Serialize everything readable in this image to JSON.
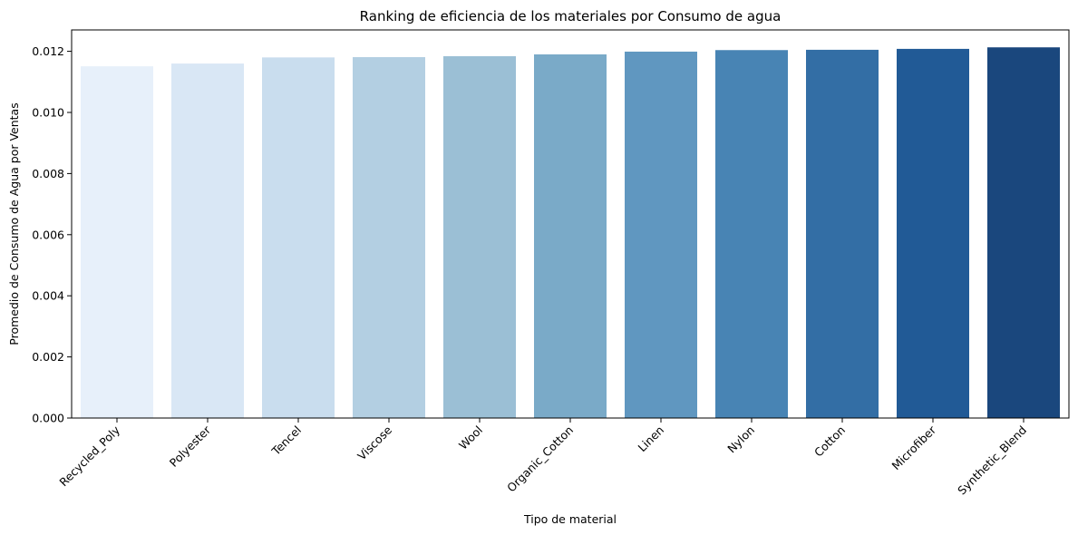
{
  "chart_data": {
    "type": "bar",
    "title": "Ranking de eficiencia de los materiales por Consumo de agua",
    "xlabel": "Tipo de material",
    "ylabel": "Promedio de Consumo de Agua por Ventas",
    "categories": [
      "Recycled_Poly",
      "Polyester",
      "Tencel",
      "Viscose",
      "Wool",
      "Organic_Cotton",
      "Linen",
      "Nylon",
      "Cotton",
      "Microfiber",
      "Synthetic_Blend"
    ],
    "values": [
      0.01151,
      0.0116,
      0.0118,
      0.01181,
      0.01184,
      0.0119,
      0.01199,
      0.01204,
      0.01205,
      0.01208,
      0.01213
    ],
    "colors": [
      "#e7f0fa",
      "#d9e7f5",
      "#c9ddee",
      "#b3cfe2",
      "#9bbfd5",
      "#7aaac8",
      "#6097c0",
      "#4884b4",
      "#336ea5",
      "#215a96",
      "#1a477d"
    ],
    "ylim": [
      0,
      0.0127
    ],
    "yticks": [
      "0.000",
      "0.002",
      "0.004",
      "0.006",
      "0.008",
      "0.010",
      "0.012"
    ],
    "grid": false,
    "legend": "none"
  }
}
